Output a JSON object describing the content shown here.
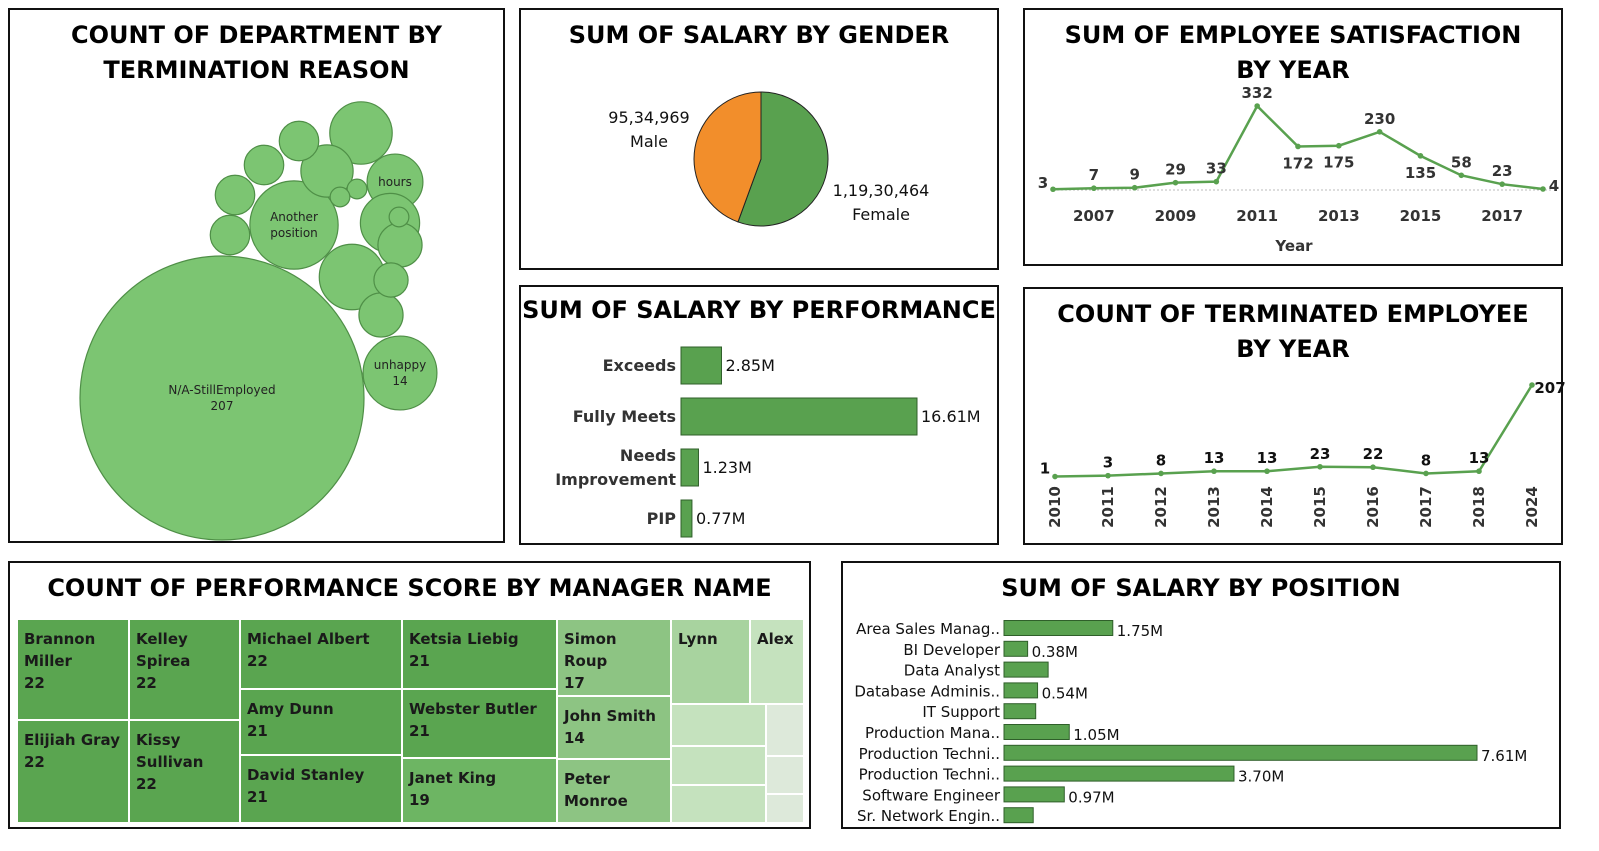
{
  "colors": {
    "green": "#59a14f",
    "green_light": "#7cc572",
    "orange": "#f28e2b",
    "tree_1": "#5aa550",
    "tree_2": "#6db563",
    "tree_3": "#8dc483",
    "tree_4": "#a8d39f",
    "tree_5": "#c5e2be",
    "tree_6": "#dde9da"
  },
  "panels": {
    "bubble_title": "COUNT OF DEPARTMENT BY TERMINATION REASON",
    "gender_title": "SUM OF SALARY BY GENDER",
    "satisfaction_title": "SUM OF EMPLOYEE SATISFACTION BY YEAR",
    "performance_title": "SUM OF SALARY BY PERFORMANCE",
    "terminated_title": "COUNT OF TERMINATED EMPLOYEE BY YEAR",
    "manager_title": "COUNT OF PERFORMANCE SCORE BY MANAGER NAME",
    "position_title": "SUM OF SALARY BY POSITION"
  },
  "chart_data": [
    {
      "id": "termination_bubbles",
      "type": "bubble",
      "title": "COUNT OF DEPARTMENT BY TERMINATION REASON",
      "bubbles": [
        {
          "label": "N/A-StillEmployed",
          "value": 207,
          "show_value": true
        },
        {
          "label": "Another position",
          "value": 20,
          "show_value": false
        },
        {
          "label": "unhappy",
          "value": 14,
          "show_value": true
        },
        {
          "label": "hours",
          "value": 8,
          "show_value": false
        },
        {
          "label": "",
          "value": 11
        },
        {
          "label": "",
          "value": 10
        },
        {
          "label": "",
          "value": 9
        },
        {
          "label": "",
          "value": 7
        },
        {
          "label": "",
          "value": 5
        },
        {
          "label": "",
          "value": 4
        },
        {
          "label": "",
          "value": 5
        },
        {
          "label": "",
          "value": 4
        },
        {
          "label": "",
          "value": 4
        },
        {
          "label": "",
          "value": 4
        },
        {
          "label": "",
          "value": 3
        },
        {
          "label": "",
          "value": 1
        },
        {
          "label": "",
          "value": 1
        },
        {
          "label": "",
          "value": 1
        }
      ]
    },
    {
      "id": "gender_pie",
      "type": "pie",
      "title": "SUM OF SALARY BY GENDER",
      "slices": [
        {
          "name": "Female",
          "value": 11930464,
          "label": "1,19,30,464",
          "color": "#59a14f"
        },
        {
          "name": "Male",
          "value": 9534969,
          "label": "95,34,969",
          "color": "#f28e2b"
        }
      ]
    },
    {
      "id": "satisfaction_line",
      "type": "line",
      "title": "SUM OF EMPLOYEE SATISFACTION BY YEAR",
      "xlabel": "Year",
      "x": [
        2006,
        2007,
        2008,
        2009,
        2010,
        2011,
        2012,
        2013,
        2014,
        2015,
        2016,
        2017,
        2018
      ],
      "values": [
        3,
        7,
        9,
        29,
        33,
        332,
        172,
        175,
        230,
        135,
        58,
        23,
        4
      ],
      "xtick_labels": [
        "2007",
        "2009",
        "2011",
        "2013",
        "2015",
        "2017"
      ],
      "xtick_positions": [
        2007,
        2009,
        2011,
        2013,
        2015,
        2017
      ]
    },
    {
      "id": "performance_bar",
      "type": "bar",
      "orientation": "horizontal",
      "title": "SUM OF SALARY BY PERFORMANCE",
      "categories": [
        "Exceeds",
        "Fully Meets",
        "Needs Improvement",
        "PIP"
      ],
      "category_lines": [
        [
          "Exceeds"
        ],
        [
          "Fully Meets"
        ],
        [
          "Needs",
          "Improvement"
        ],
        [
          "PIP"
        ]
      ],
      "values": [
        2.85,
        16.61,
        1.23,
        0.77
      ],
      "value_labels": [
        "2.85M",
        "16.61M",
        "1.23M",
        "0.77M"
      ]
    },
    {
      "id": "terminated_line",
      "type": "line",
      "title": "COUNT OF TERMINATED EMPLOYEE BY YEAR",
      "categories": [
        "2010",
        "2011",
        "2012",
        "2013",
        "2014",
        "2015",
        "2016",
        "2017",
        "2018",
        "2024"
      ],
      "values": [
        1,
        3,
        8,
        13,
        13,
        23,
        22,
        8,
        13,
        207
      ]
    },
    {
      "id": "manager_treemap",
      "type": "treemap",
      "title": "COUNT OF PERFORMANCE SCORE BY MANAGER NAME",
      "cells": [
        {
          "name": "Brannon Miller",
          "value": "22"
        },
        {
          "name": "Kelley Spirea",
          "value": "22"
        },
        {
          "name": "Elijiah Gray",
          "value": "22"
        },
        {
          "name": "Kissy Sullivan",
          "value": "22"
        },
        {
          "name": "Michael Albert",
          "value": "22"
        },
        {
          "name": "Amy Dunn",
          "value": "21"
        },
        {
          "name": "David Stanley",
          "value": "21"
        },
        {
          "name": "Ketsia Liebig",
          "value": "21"
        },
        {
          "name": "Webster Butler",
          "value": "21"
        },
        {
          "name": "Janet King",
          "value": "19"
        },
        {
          "name": "Simon Roup",
          "value": "17"
        },
        {
          "name": "John Smith",
          "value": "14"
        },
        {
          "name": "Peter Monroe",
          "value": ""
        },
        {
          "name": "Lynn",
          "value": ""
        },
        {
          "name": "Alex",
          "value": ""
        },
        {
          "name": "",
          "value": ""
        },
        {
          "name": "",
          "value": ""
        },
        {
          "name": "",
          "value": ""
        },
        {
          "name": "",
          "value": ""
        },
        {
          "name": "",
          "value": ""
        },
        {
          "name": "",
          "value": ""
        }
      ]
    },
    {
      "id": "position_bar",
      "type": "bar",
      "orientation": "horizontal",
      "title": "SUM OF SALARY BY POSITION",
      "categories": [
        "Area Sales Manag..",
        "BI Developer",
        "Data Analyst",
        "Database Adminis..",
        "IT Support",
        "Production Mana..",
        "Production Techni..",
        "Production Techni..",
        "Software Engineer",
        "Sr. Network Engin.."
      ],
      "values": [
        1.75,
        0.38,
        0.71,
        0.54,
        0.51,
        1.05,
        7.61,
        3.7,
        0.97,
        0.47
      ],
      "value_labels": [
        "1.75M",
        "0.38M",
        "",
        "0.54M",
        "",
        "1.05M",
        "7.61M",
        "3.70M",
        "0.97M",
        ""
      ]
    }
  ]
}
